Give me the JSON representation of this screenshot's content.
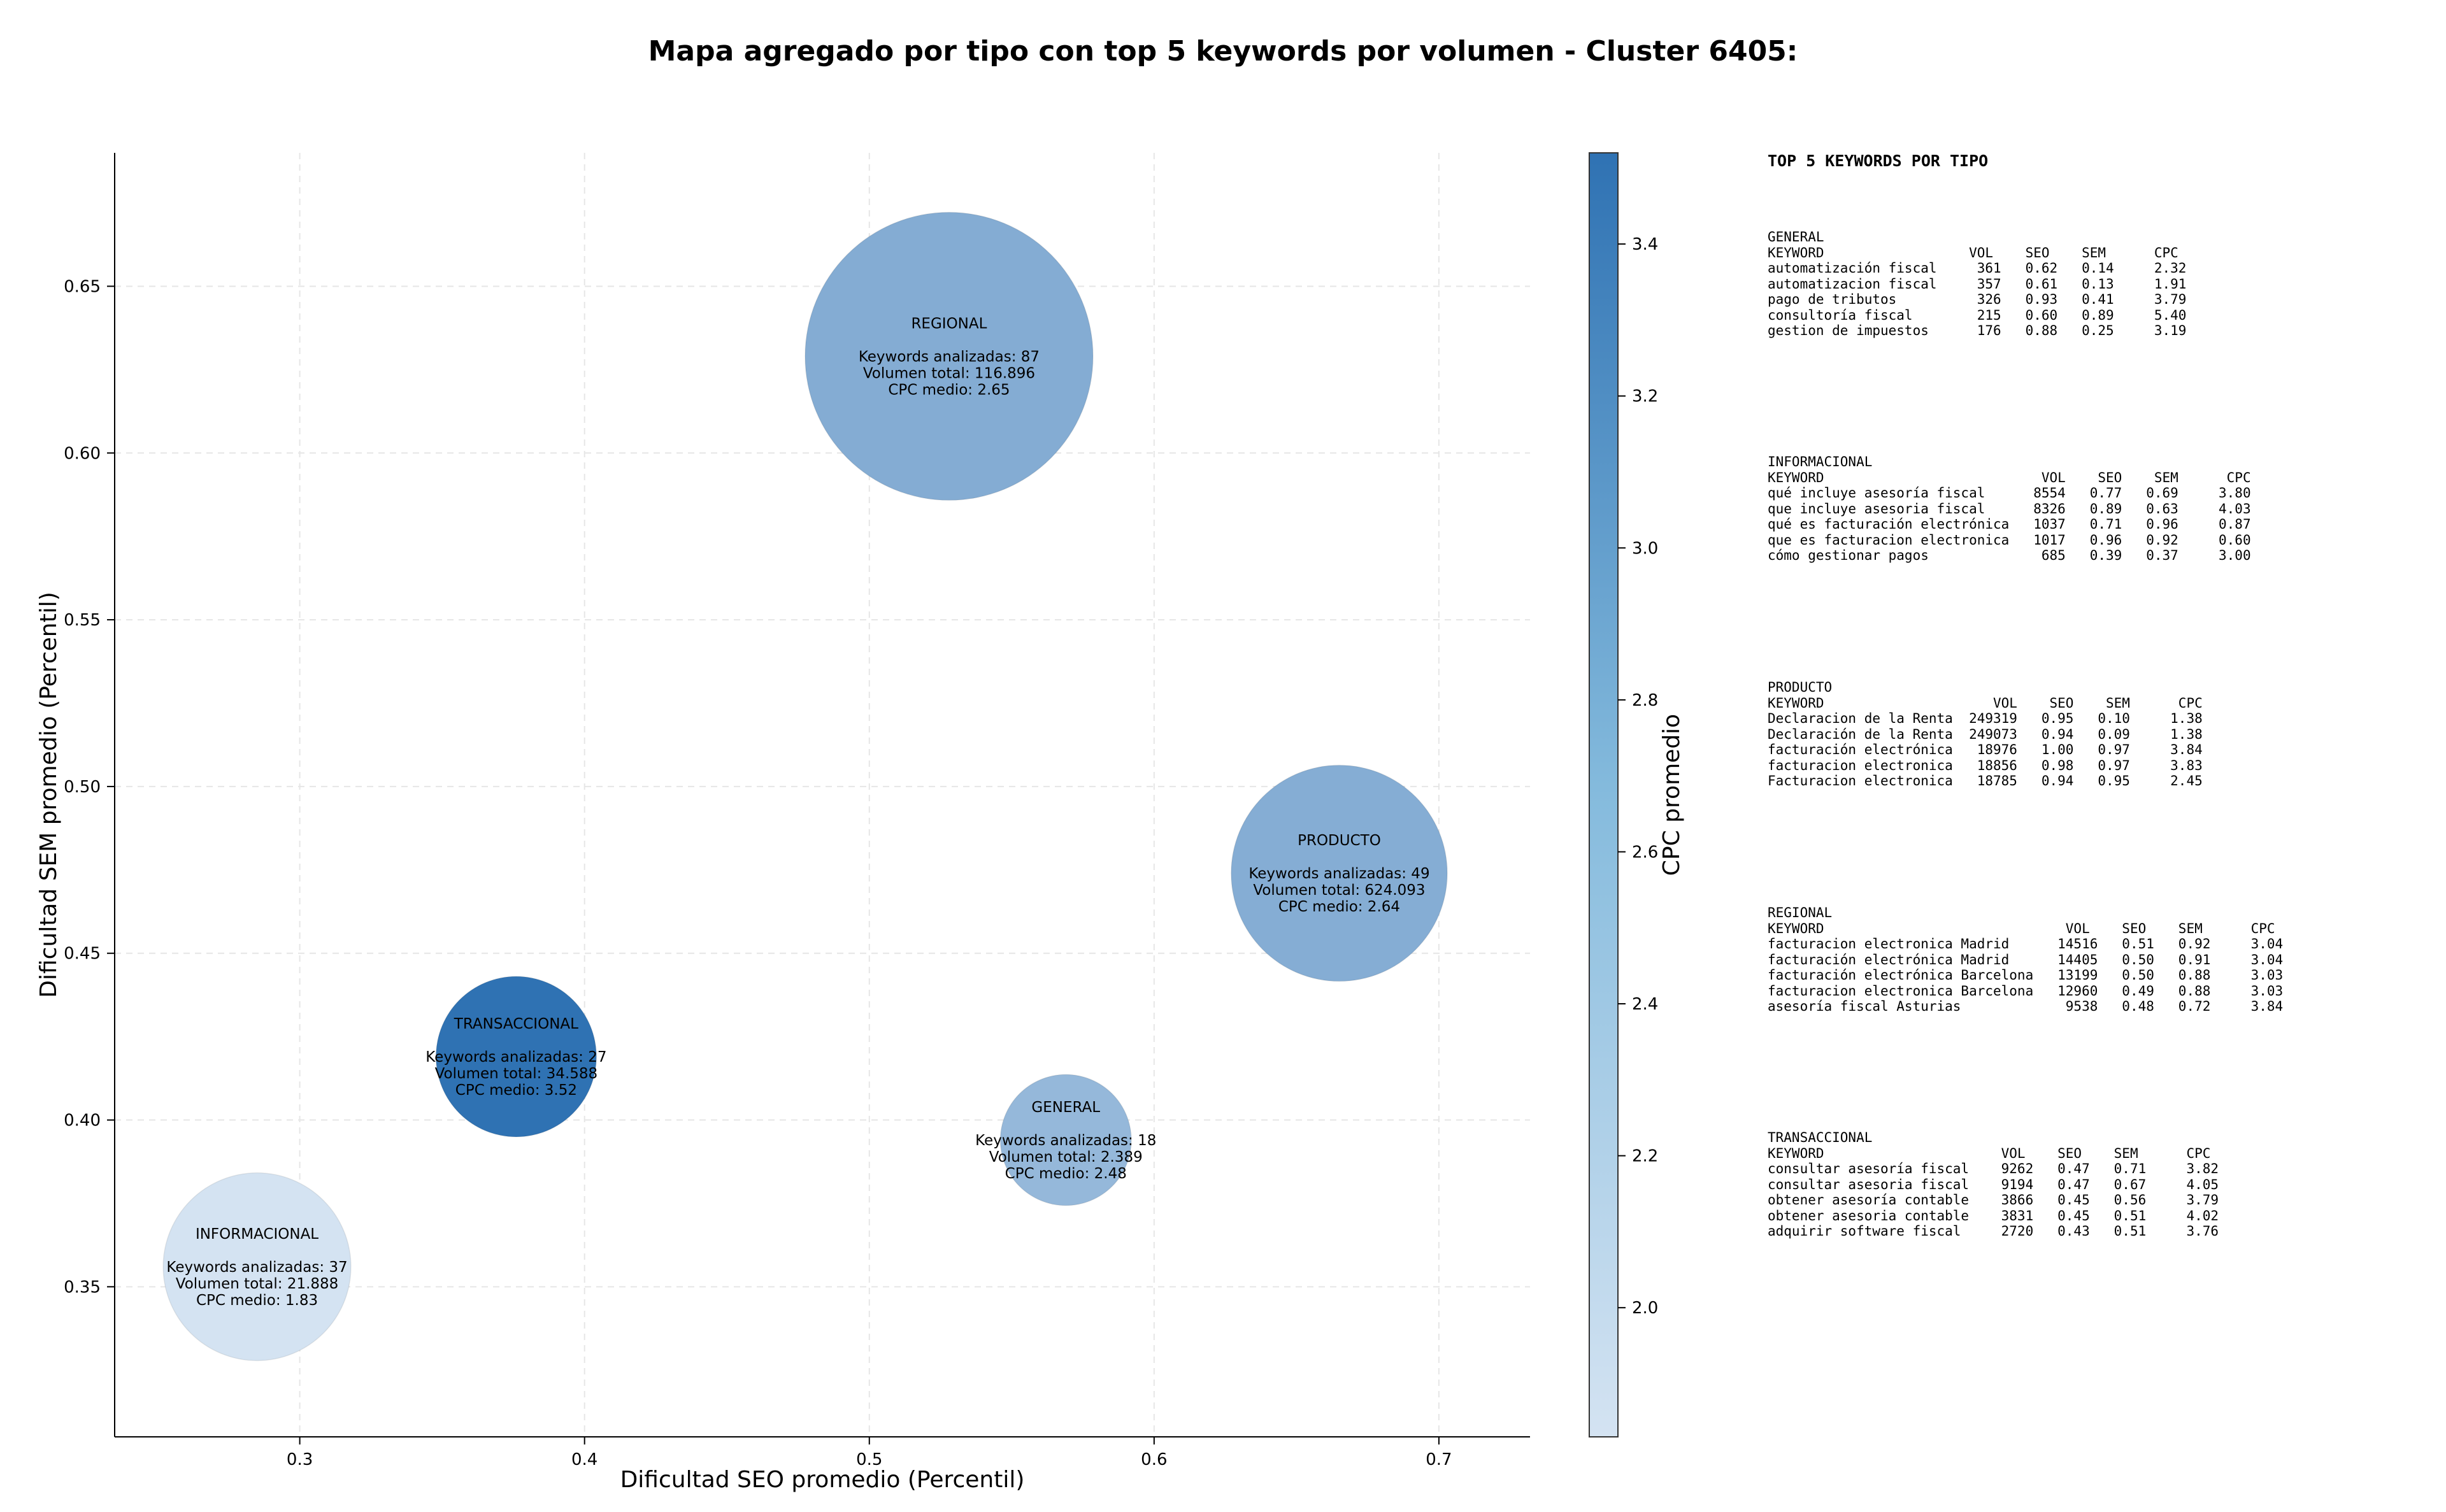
{
  "title": "Mapa agregado por tipo con top 5 keywords por volumen - Cluster 6405:",
  "chart_data": {
    "type": "scatter",
    "title": "Mapa agregado por tipo con top 5 keywords por volumen - Cluster 6405:",
    "xlabel": "Dificultad SEO promedio (Percentil)",
    "ylabel": "Dificultad SEM promedio (Percentil)",
    "colorbar_label": "CPC promedio",
    "xlim": [
      0.235,
      0.732
    ],
    "ylim": [
      0.305,
      0.69
    ],
    "x_ticks": [
      0.3,
      0.4,
      0.5,
      0.6,
      0.7
    ],
    "y_ticks": [
      0.35,
      0.4,
      0.45,
      0.5,
      0.55,
      0.6,
      0.65
    ],
    "colorbar_range": [
      1.83,
      3.52
    ],
    "colorbar_ticks": [
      2.0,
      2.2,
      2.4,
      2.6,
      2.8,
      3.0,
      3.2,
      3.4
    ],
    "grid": true,
    "colors": {
      "low": "#d4e3f2",
      "high": "#2f72b3"
    },
    "points": [
      {
        "name": "INFORMACIONAL",
        "x": 0.285,
        "y": 0.356,
        "keywords": 37,
        "volume": 21888,
        "cpc": 1.83,
        "lines": [
          "INFORMACIONAL",
          "",
          "Keywords analizadas: 37",
          "Volumen total: 21.888",
          "CPC medio: 1.83"
        ]
      },
      {
        "name": "TRANSACCIONAL",
        "x": 0.376,
        "y": 0.419,
        "keywords": 27,
        "volume": 34588,
        "cpc": 3.52,
        "lines": [
          "TRANSACCIONAL",
          "",
          "Keywords analizadas: 27",
          "Volumen total: 34.588",
          "CPC medio: 3.52"
        ]
      },
      {
        "name": "REGIONAL",
        "x": 0.528,
        "y": 0.629,
        "keywords": 87,
        "volume": 116896,
        "cpc": 2.65,
        "lines": [
          "REGIONAL",
          "",
          "Keywords analizadas: 87",
          "Volumen total: 116.896",
          "CPC medio: 2.65"
        ]
      },
      {
        "name": "GENERAL",
        "x": 0.569,
        "y": 0.394,
        "keywords": 18,
        "volume": 2389,
        "cpc": 2.48,
        "lines": [
          "GENERAL",
          "",
          "Keywords analizadas: 18",
          "Volumen total: 2.389",
          "CPC medio: 2.48"
        ]
      },
      {
        "name": "PRODUCTO",
        "x": 0.665,
        "y": 0.474,
        "keywords": 49,
        "volume": 624093,
        "cpc": 2.64,
        "lines": [
          "PRODUCTO",
          "",
          "Keywords analizadas: 49",
          "Volumen total: 624.093",
          "CPC medio: 2.64"
        ]
      }
    ]
  },
  "side_panel": {
    "title": "TOP 5 KEYWORDS POR TIPO",
    "blocks": [
      {
        "lines": [
          "GENERAL",
          "KEYWORD                  VOL    SEO    SEM      CPC",
          "automatización fiscal     361   0.62   0.14     2.32",
          "automatizacion fiscal     357   0.61   0.13     1.91",
          "pago de tributos          326   0.93   0.41     3.79",
          "consultoría fiscal        215   0.60   0.89     5.40",
          "gestion de impuestos      176   0.88   0.25     3.19"
        ]
      },
      {
        "lines": [
          "INFORMACIONAL",
          "KEYWORD                           VOL    SEO    SEM      CPC",
          "qué incluye asesoría fiscal      8554   0.77   0.69     3.80",
          "que incluye asesoria fiscal      8326   0.89   0.63     4.03",
          "qué es facturación electrónica   1037   0.71   0.96     0.87",
          "que es facturacion electronica   1017   0.96   0.92     0.60",
          "cómo gestionar pagos              685   0.39   0.37     3.00"
        ]
      },
      {
        "lines": [
          "PRODUCTO",
          "KEYWORD                     VOL    SEO    SEM      CPC",
          "Declaracion de la Renta  249319   0.95   0.10     1.38",
          "Declaración de la Renta  249073   0.94   0.09     1.38",
          "facturación electrónica   18976   1.00   0.97     3.84",
          "facturacion electronica   18856   0.98   0.97     3.83",
          "Facturacion electronica   18785   0.94   0.95     2.45"
        ]
      },
      {
        "lines": [
          "REGIONAL",
          "KEYWORD                              VOL    SEO    SEM      CPC",
          "facturacion electronica Madrid      14516   0.51   0.92     3.04",
          "facturación electrónica Madrid      14405   0.50   0.91     3.04",
          "facturación electrónica Barcelona   13199   0.50   0.88     3.03",
          "facturacion electronica Barcelona   12960   0.49   0.88     3.03",
          "asesoría fiscal Asturias             9538   0.48   0.72     3.84"
        ]
      },
      {
        "lines": [
          "TRANSACCIONAL",
          "KEYWORD                      VOL    SEO    SEM      CPC",
          "consultar asesoría fiscal    9262   0.47   0.71     3.82",
          "consultar asesoria fiscal    9194   0.47   0.67     4.05",
          "obtener asesoría contable    3866   0.45   0.56     3.79",
          "obtener asesoria contable    3831   0.45   0.51     4.02",
          "adquirir software fiscal     2720   0.43   0.51     3.76"
        ]
      }
    ]
  }
}
